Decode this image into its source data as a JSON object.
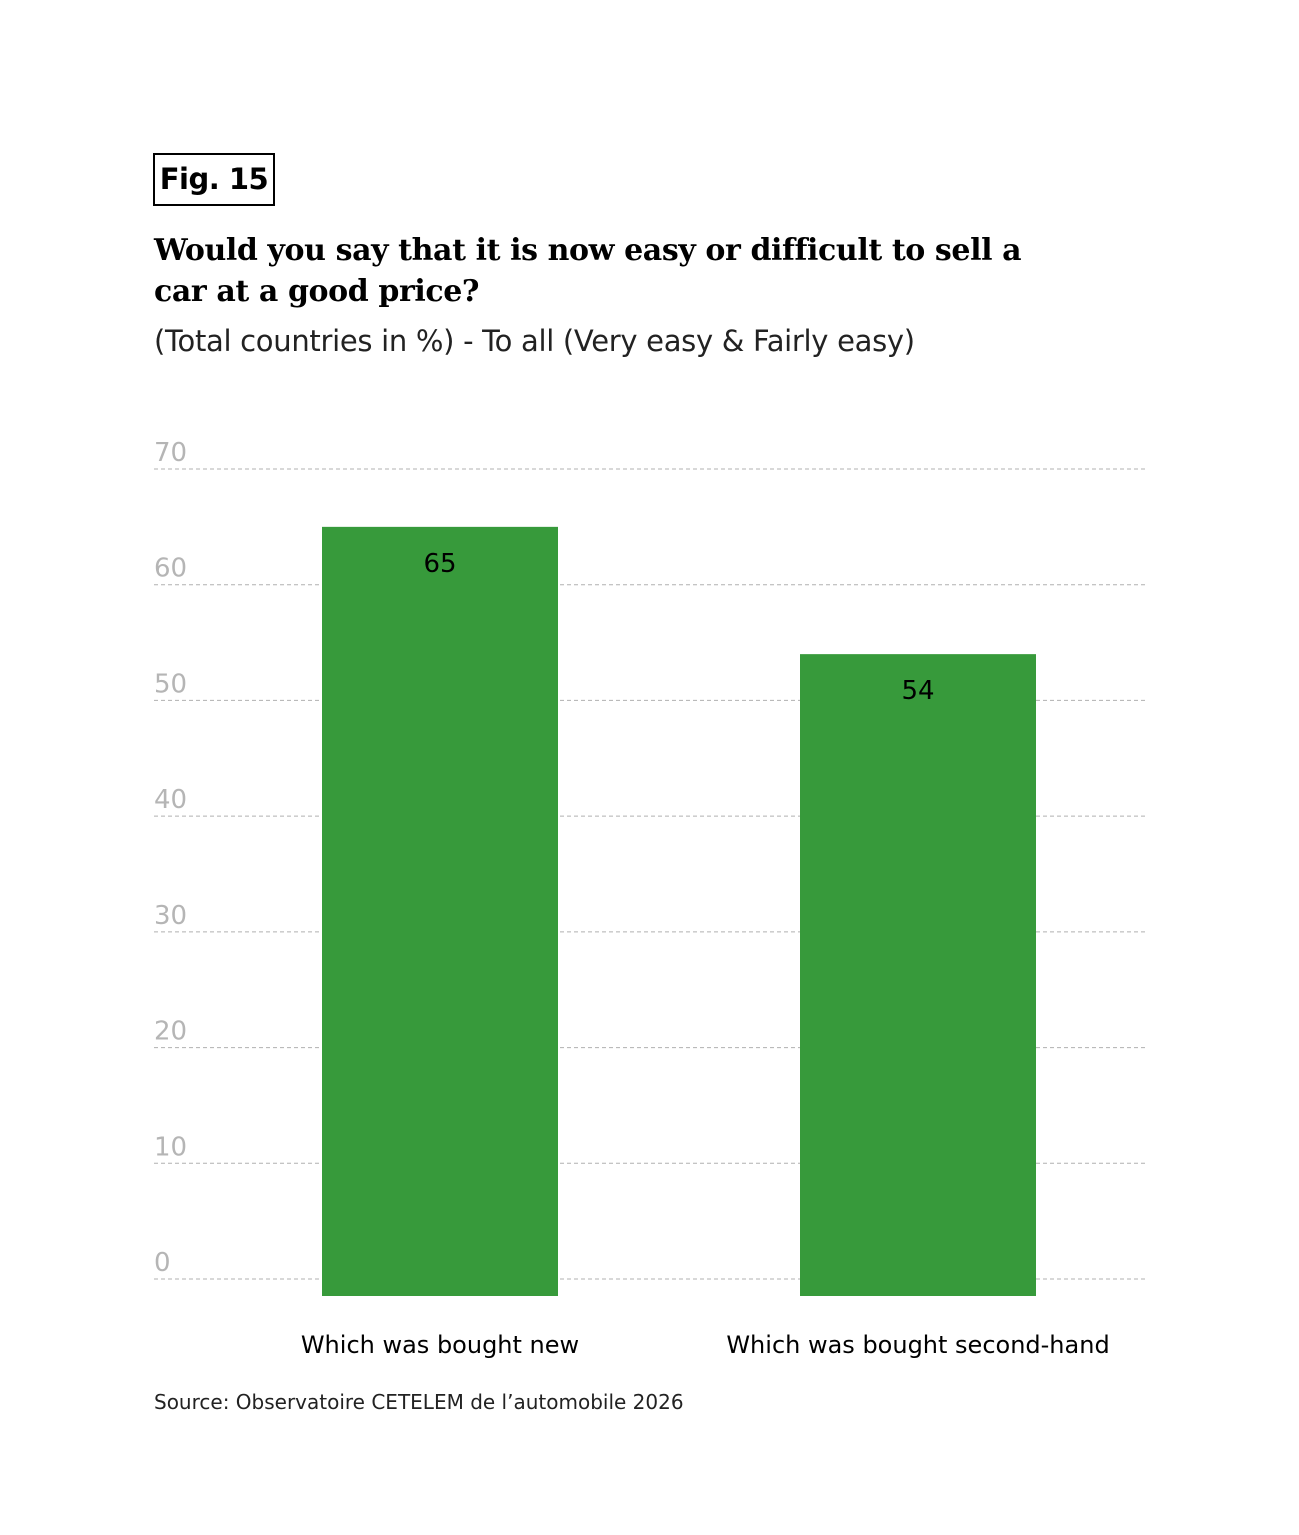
{
  "figure": {
    "label": "Fig. 15",
    "title": "Would you say that it is now easy or difficult to sell a car at a good price?",
    "subtitle": "(Total countries in %) - To all (Very easy & Fairly easy)",
    "source": "Source: Observatoire CETELEM de l’automobile 2026"
  },
  "chart_data": {
    "type": "bar",
    "categories": [
      "Which was bought new",
      "Which was bought second-hand"
    ],
    "values": [
      65,
      54
    ],
    "ylim": [
      0,
      70
    ],
    "yticks": [
      0,
      10,
      20,
      30,
      40,
      50,
      60,
      70
    ],
    "grid": true,
    "data_labels": [
      "65",
      "54"
    ],
    "colors": {
      "bar": "#379a3b",
      "grid": "#b0b0b0",
      "tick_label": "#b5b5b5",
      "data_label": "#000000"
    }
  }
}
